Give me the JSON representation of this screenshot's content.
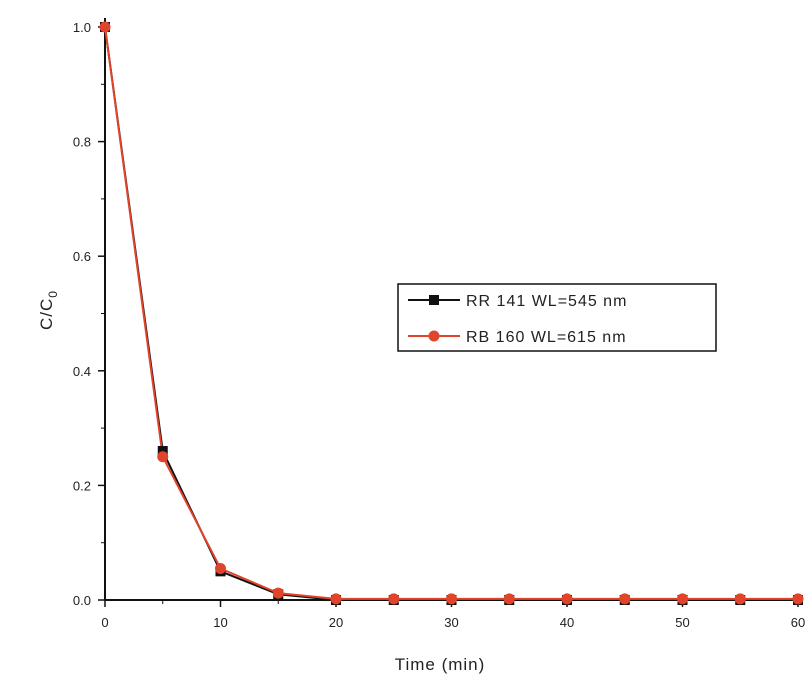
{
  "chart_data": {
    "type": "line",
    "title": "",
    "xlabel": "Time (min)",
    "ylabel_main": "C/C",
    "ylabel_sub": "0",
    "xlim": [
      0,
      60
    ],
    "ylim": [
      0,
      1.0
    ],
    "x_ticks": [
      0,
      10,
      20,
      30,
      40,
      50,
      60
    ],
    "y_ticks": [
      "0.0",
      "0.2",
      "0.4",
      "0.6",
      "0.8",
      "1.0"
    ],
    "grid": false,
    "legend_position": "center-right",
    "series": [
      {
        "name": "RR 141 WL=545 nm",
        "color": "#111111",
        "marker": "square",
        "x": [
          0,
          5,
          10,
          15,
          20,
          25,
          30,
          35,
          40,
          45,
          50,
          55,
          60
        ],
        "y": [
          1.0,
          0.26,
          0.05,
          0.01,
          0.0,
          0.0,
          0.0,
          0.0,
          0.0,
          0.0,
          0.0,
          0.0,
          0.0
        ]
      },
      {
        "name": "RB 160 WL=615 nm",
        "color": "#e0442a",
        "marker": "circle",
        "x": [
          0,
          5,
          10,
          15,
          20,
          25,
          30,
          35,
          40,
          45,
          50,
          55,
          60
        ],
        "y": [
          1.0,
          0.25,
          0.055,
          0.012,
          0.002,
          0.002,
          0.002,
          0.002,
          0.002,
          0.002,
          0.002,
          0.002,
          0.002
        ]
      }
    ]
  }
}
